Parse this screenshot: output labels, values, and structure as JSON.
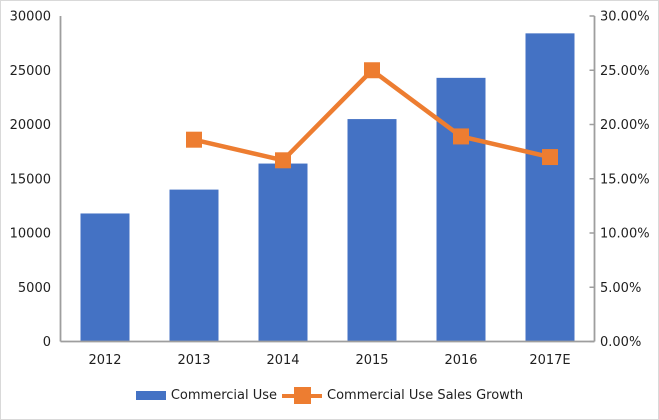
{
  "chart_data": {
    "type": "combo",
    "categories": [
      "2012",
      "2013",
      "2014",
      "2015",
      "2016",
      "2017E"
    ],
    "series": [
      {
        "name": "Commercial Use",
        "type": "bar",
        "axis": "left",
        "color": "#4472C4",
        "values": [
          11800,
          14000,
          16400,
          20500,
          24300,
          28400
        ]
      },
      {
        "name": "Commercial Use Sales Growth",
        "type": "line",
        "axis": "right",
        "color": "#ED7D31",
        "marker": "square",
        "values": [
          null,
          18.6,
          16.7,
          25.0,
          18.9,
          17.0
        ]
      }
    ],
    "left_axis": {
      "min": 0,
      "max": 30000,
      "step": 5000,
      "tick_labels": [
        "0",
        "5000",
        "10000",
        "15000",
        "20000",
        "25000",
        "30000"
      ]
    },
    "right_axis": {
      "min": 0,
      "max": 30,
      "step": 5,
      "tick_labels": [
        "0.00%",
        "5.00%",
        "10.00%",
        "15.00%",
        "20.00%",
        "25.00%",
        "30.00%"
      ]
    },
    "grid": "off",
    "title": "",
    "legend_position": "bottom",
    "axis_color": "#9e9e9e",
    "text_color": "#1f1f1f"
  }
}
